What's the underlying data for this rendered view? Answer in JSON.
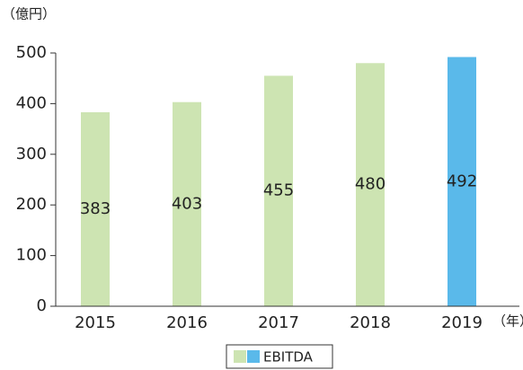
{
  "chart_data": {
    "type": "bar",
    "y_axis_label": "（億円）",
    "x_axis_label": "（年）",
    "categories": [
      "2015",
      "2016",
      "2017",
      "2018",
      "2019"
    ],
    "series": [
      {
        "name": "EBITDA",
        "colors": [
          "#cde4b2",
          "#cde4b2",
          "#cde4b2",
          "#cde4b2",
          "#5ab9ea"
        ],
        "values": [
          383,
          403,
          455,
          480,
          492
        ]
      }
    ],
    "ylim": [
      0,
      500
    ],
    "yticks": [
      0,
      100,
      200,
      300,
      400,
      500
    ],
    "grid": false
  }
}
